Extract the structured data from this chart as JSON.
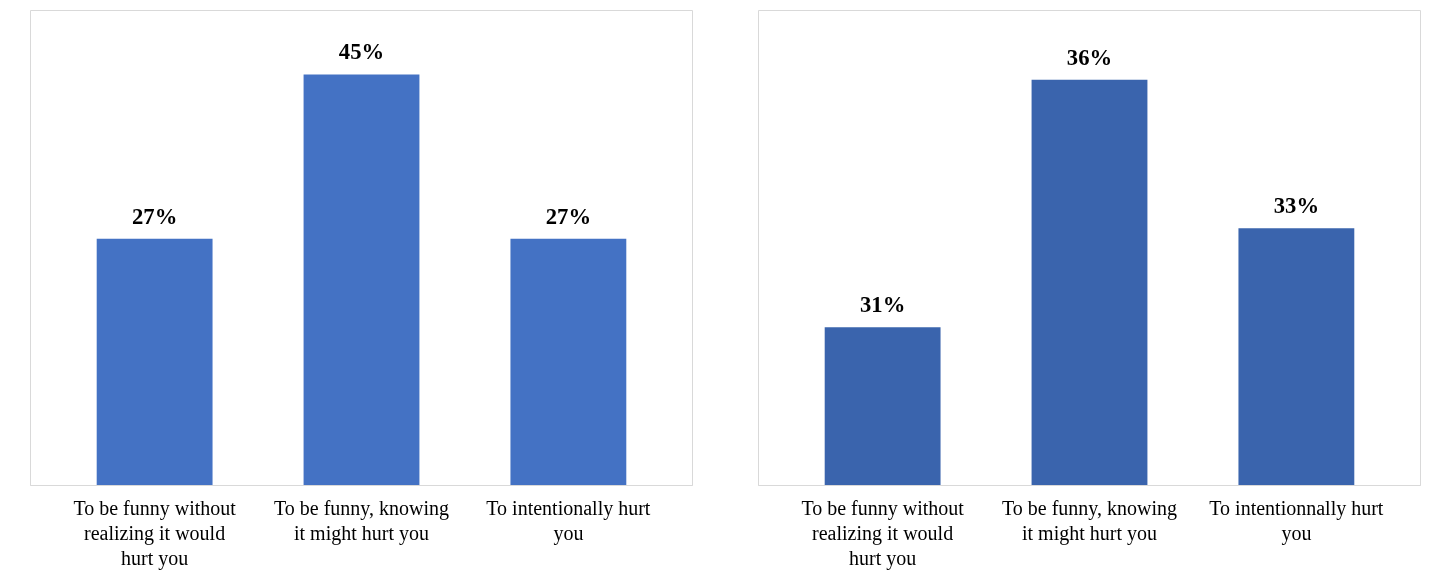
{
  "chart_data": [
    {
      "type": "bar",
      "categories": [
        "To be funny without realizing it would hurt you",
        "To be funny, knowing it might hurt you",
        "To intentionally hurt you"
      ],
      "values": [
        27,
        45,
        27
      ],
      "color": "#4472c4",
      "data_labels": true,
      "value_labels": [
        "27%",
        "45%",
        "27%"
      ],
      "ylim": [
        0,
        52
      ],
      "tick_labels": "x",
      "grid": false
    },
    {
      "type": "bar",
      "categories": [
        "To be funny without realizing it would hurt you",
        "To be funny, knowing it might hurt you",
        "To intentionnally hurt you"
      ],
      "values": [
        31,
        36,
        33
      ],
      "color": "#3a64ad",
      "data_labels": true,
      "value_labels": [
        "31%",
        "36%",
        "33%"
      ],
      "ylim": [
        27.8,
        37.4
      ],
      "tick_labels": "x",
      "grid": false
    }
  ]
}
